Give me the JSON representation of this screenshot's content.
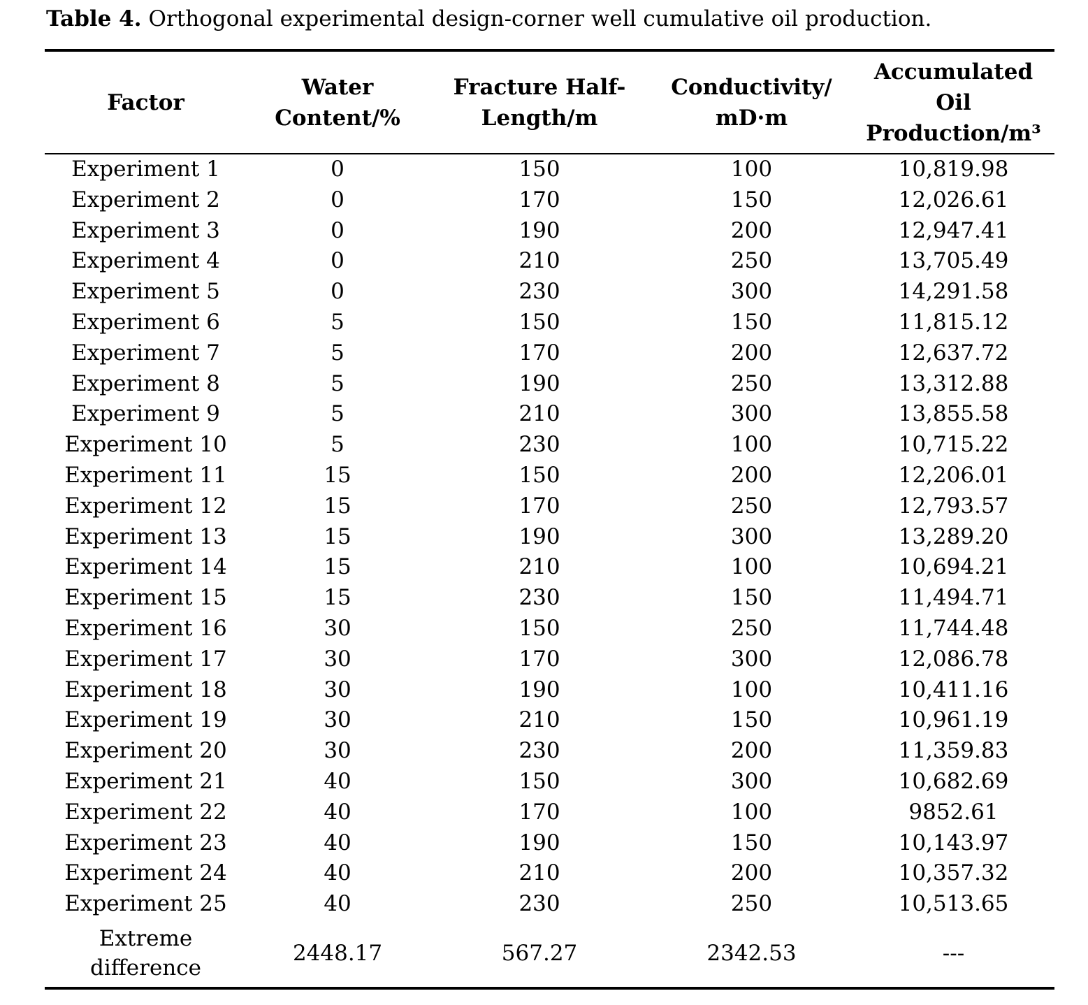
{
  "caption": {
    "label": "Table 4.",
    "text": "Orthogonal experimental design-corner well cumulative oil production."
  },
  "table": {
    "columns": [
      "Factor",
      "Water\nContent/%",
      "Fracture Half-\nLength/m",
      "Conductivity/\nmD·m",
      "Accumulated\nOil\nProduction/m³"
    ],
    "rows": [
      {
        "factor": "Experiment 1",
        "water_content": "0",
        "fracture_half_length": "150",
        "conductivity": "100",
        "accumulated_oil": "10,819.98"
      },
      {
        "factor": "Experiment 2",
        "water_content": "0",
        "fracture_half_length": "170",
        "conductivity": "150",
        "accumulated_oil": "12,026.61"
      },
      {
        "factor": "Experiment 3",
        "water_content": "0",
        "fracture_half_length": "190",
        "conductivity": "200",
        "accumulated_oil": "12,947.41"
      },
      {
        "factor": "Experiment 4",
        "water_content": "0",
        "fracture_half_length": "210",
        "conductivity": "250",
        "accumulated_oil": "13,705.49"
      },
      {
        "factor": "Experiment 5",
        "water_content": "0",
        "fracture_half_length": "230",
        "conductivity": "300",
        "accumulated_oil": "14,291.58"
      },
      {
        "factor": "Experiment 6",
        "water_content": "5",
        "fracture_half_length": "150",
        "conductivity": "150",
        "accumulated_oil": "11,815.12"
      },
      {
        "factor": "Experiment 7",
        "water_content": "5",
        "fracture_half_length": "170",
        "conductivity": "200",
        "accumulated_oil": "12,637.72"
      },
      {
        "factor": "Experiment 8",
        "water_content": "5",
        "fracture_half_length": "190",
        "conductivity": "250",
        "accumulated_oil": "13,312.88"
      },
      {
        "factor": "Experiment 9",
        "water_content": "5",
        "fracture_half_length": "210",
        "conductivity": "300",
        "accumulated_oil": "13,855.58"
      },
      {
        "factor": "Experiment 10",
        "water_content": "5",
        "fracture_half_length": "230",
        "conductivity": "100",
        "accumulated_oil": "10,715.22"
      },
      {
        "factor": "Experiment 11",
        "water_content": "15",
        "fracture_half_length": "150",
        "conductivity": "200",
        "accumulated_oil": "12,206.01"
      },
      {
        "factor": "Experiment 12",
        "water_content": "15",
        "fracture_half_length": "170",
        "conductivity": "250",
        "accumulated_oil": "12,793.57"
      },
      {
        "factor": "Experiment 13",
        "water_content": "15",
        "fracture_half_length": "190",
        "conductivity": "300",
        "accumulated_oil": "13,289.20"
      },
      {
        "factor": "Experiment 14",
        "water_content": "15",
        "fracture_half_length": "210",
        "conductivity": "100",
        "accumulated_oil": "10,694.21"
      },
      {
        "factor": "Experiment 15",
        "water_content": "15",
        "fracture_half_length": "230",
        "conductivity": "150",
        "accumulated_oil": "11,494.71"
      },
      {
        "factor": "Experiment 16",
        "water_content": "30",
        "fracture_half_length": "150",
        "conductivity": "250",
        "accumulated_oil": "11,744.48"
      },
      {
        "factor": "Experiment 17",
        "water_content": "30",
        "fracture_half_length": "170",
        "conductivity": "300",
        "accumulated_oil": "12,086.78"
      },
      {
        "factor": "Experiment 18",
        "water_content": "30",
        "fracture_half_length": "190",
        "conductivity": "100",
        "accumulated_oil": "10,411.16"
      },
      {
        "factor": "Experiment 19",
        "water_content": "30",
        "fracture_half_length": "210",
        "conductivity": "150",
        "accumulated_oil": "10,961.19"
      },
      {
        "factor": "Experiment 20",
        "water_content": "30",
        "fracture_half_length": "230",
        "conductivity": "200",
        "accumulated_oil": "11,359.83"
      },
      {
        "factor": "Experiment 21",
        "water_content": "40",
        "fracture_half_length": "150",
        "conductivity": "300",
        "accumulated_oil": "10,682.69"
      },
      {
        "factor": "Experiment 22",
        "water_content": "40",
        "fracture_half_length": "170",
        "conductivity": "100",
        "accumulated_oil": "9852.61"
      },
      {
        "factor": "Experiment 23",
        "water_content": "40",
        "fracture_half_length": "190",
        "conductivity": "150",
        "accumulated_oil": "10,143.97"
      },
      {
        "factor": "Experiment 24",
        "water_content": "40",
        "fracture_half_length": "210",
        "conductivity": "200",
        "accumulated_oil": "10,357.32"
      },
      {
        "factor": "Experiment 25",
        "water_content": "40",
        "fracture_half_length": "230",
        "conductivity": "250",
        "accumulated_oil": "10,513.65"
      }
    ],
    "footer": {
      "factor": "Extreme\ndifference",
      "water_content": "2448.17",
      "fracture_half_length": "567.27",
      "conductivity": "2342.53",
      "accumulated_oil": "---"
    }
  }
}
